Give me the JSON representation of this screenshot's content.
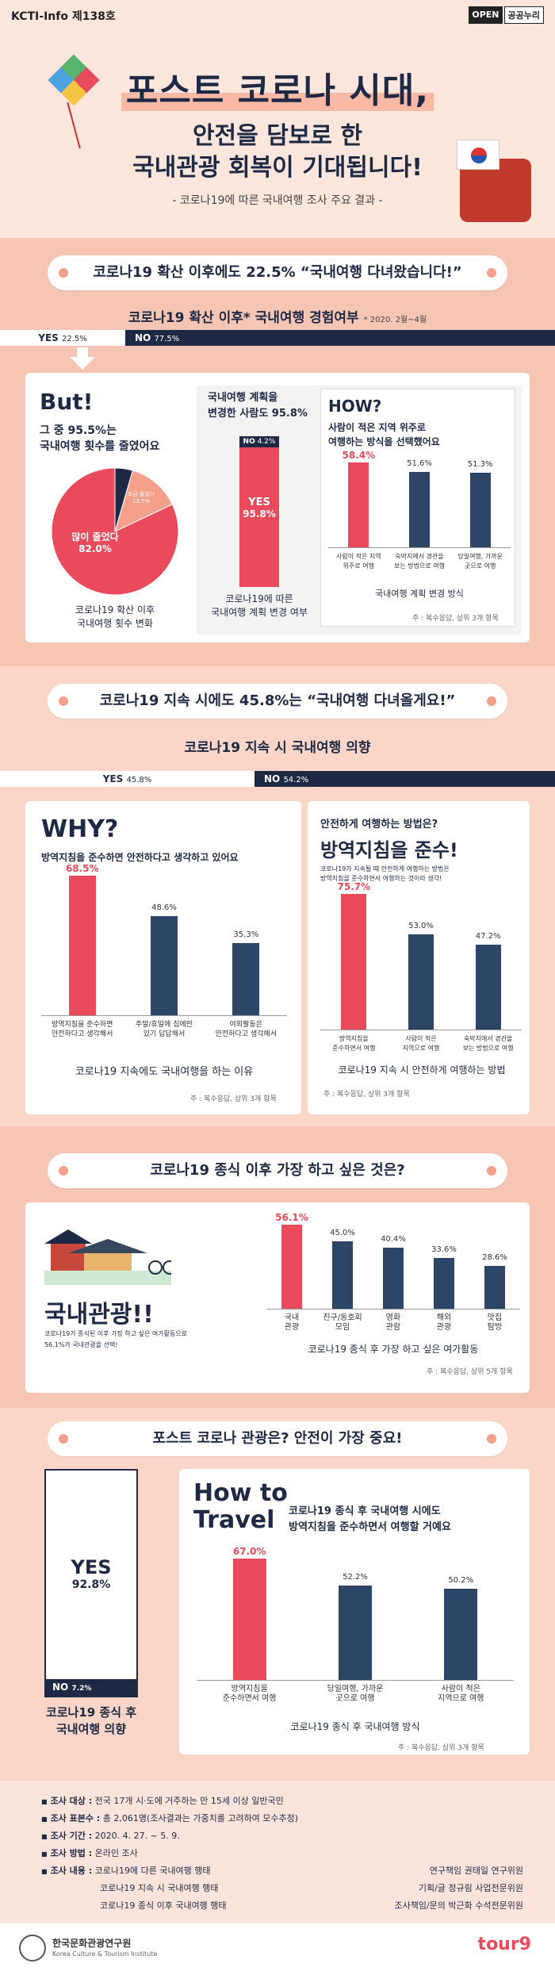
{
  "header": {
    "series": "KCTI-Info 제138호",
    "open_badge": [
      "OPEN",
      "공공누리"
    ],
    "title_line1": "포스트 코로나 시대,",
    "title_line2": "안전을 담보로 한",
    "title_line3": "국내관광 회복이 기대됩니다!",
    "subtitle": "- 코로나19에 따른 국내여행 조사 주요 결과 -"
  },
  "s1": {
    "pill": "코로나19 확산 이후에도 22.5% “국내여행 다녀왔습니다!”",
    "subtitle": "코로나19 확산 이후* 국내여행 경험여부",
    "subtitle_note": "* 2020. 2월~4월",
    "yes_label": "YES",
    "yes_value": "22.5%",
    "no_label": "NO",
    "no_value": "77.5%",
    "yes_share": 22.5,
    "but": {
      "title": "But!",
      "text1": "그 중 95.5%는",
      "text2": "국내여행 횟수를 줄였어요",
      "pie_big_label": "많이 줄었다",
      "pie_big_value": "82.0%",
      "pie_small_label": "조금 줄었다",
      "pie_small_value": "13.5%",
      "pie_values": [
        82.0,
        13.5,
        4.5
      ],
      "caption1": "코로나19 확산 이후",
      "caption2": "국내여행 횟수 변화"
    },
    "plan": {
      "title1": "국내여행 계획을",
      "title2": "변경한 사람도 95.8%",
      "no_label": "NO",
      "no_value": "4.2%",
      "yes_label": "YES",
      "yes_value": "95.8%",
      "yes_share": 95.8,
      "caption1": "코로나19에 따른",
      "caption2": "국내여행 계획 변경 여부"
    },
    "how": {
      "title": "HOW?",
      "text1": "사람이 적은 지역 위주로",
      "text2": "여행하는 방식을 선택했어요",
      "bars": [
        {
          "label1": "사람이 적은 지역",
          "label2": "위주로 여행",
          "value": 58.4,
          "text": "58.4%"
        },
        {
          "label1": "숙박지에서 경관을",
          "label2": "보는 방법으로 여행",
          "value": 51.6,
          "text": "51.6%"
        },
        {
          "label1": "당일여행, 가까운",
          "label2": "곳으로 여행",
          "value": 51.3,
          "text": "51.3%"
        }
      ],
      "caption": "국내여행 계획 변경 방식",
      "note": "주 : 복수응답, 상위 3개 항목"
    }
  },
  "s2": {
    "pill": "코로나19 지속 시에도 45.8%는 “국내여행 다녀올게요!”",
    "subtitle": "코로나19 지속 시 국내여행 의향",
    "yes_label": "YES",
    "yes_value": "45.8%",
    "no_label": "NO",
    "no_value": "54.2%",
    "yes_share": 45.8,
    "why": {
      "title": "WHY?",
      "text": "방역지침을 준수하면 안전하다고 생각하고 있어요",
      "bars": [
        {
          "label1": "방역지침을 준수하면",
          "label2": "안전하다고 생각해서",
          "value": 68.5,
          "text": "68.5%"
        },
        {
          "label1": "주말/휴일에 집에만",
          "label2": "있기 답답해서",
          "value": 48.6,
          "text": "48.6%"
        },
        {
          "label1": "야외활동은",
          "label2": "안전하다고 생각해서",
          "value": 35.3,
          "text": "35.3%"
        }
      ],
      "caption": "코로나19 지속에도 국내여행을 하는 이유",
      "note": "주 : 복수응답, 상위 3개 항목"
    },
    "safe": {
      "title1": "안전하게 여행하는 방법은?",
      "title2": "방역지침을 준수!",
      "desc1": "코로나19가 지속될 때 안전하게 여행하는 방법은",
      "desc2": "방역지침을 준수하면서 여행하는 것이라 생각!",
      "bars": [
        {
          "label1": "방역지침을",
          "label2": "준수하면서 여행",
          "value": 75.7,
          "text": "75.7%"
        },
        {
          "label1": "사람이 적은",
          "label2": "지역으로 여행",
          "value": 53.0,
          "text": "53.0%"
        },
        {
          "label1": "숙박지에서 경관을",
          "label2": "보는 방법으로 여행",
          "value": 47.2,
          "text": "47.2%"
        }
      ],
      "caption": "코로나19 지속 시 안전하게 여행하는 방법",
      "note": "주 : 복수응답, 상위 3개 항목"
    }
  },
  "s3": {
    "pill": "코로나19 종식 이후 가장 하고 싶은 것은?",
    "big": "국내관광!!",
    "desc1": "코로나19가 종식된 이후 가장 하고 싶은 여가활동으로",
    "desc2": "56.1%가 국내관광을 선택!",
    "bars": [
      {
        "label1": "국내",
        "label2": "관광",
        "value": 56.1,
        "text": "56.1%"
      },
      {
        "label1": "친구/동호회",
        "label2": "모임",
        "value": 45.0,
        "text": "45.0%"
      },
      {
        "label1": "영화",
        "label2": "관람",
        "value": 40.4,
        "text": "40.4%"
      },
      {
        "label1": "해외",
        "label2": "관광",
        "value": 33.6,
        "text": "33.6%"
      },
      {
        "label1": "맛집",
        "label2": "탐방",
        "value": 28.6,
        "text": "28.6%"
      }
    ],
    "caption": "코로나19 종식 후 가장 하고 싶은 여가활동",
    "note": "주 : 복수응답, 상위 5개 항목"
  },
  "s4": {
    "pill": "포스트 코로나 관광은? 안전이 가장 중요!",
    "yes_label": "YES",
    "yes_value": "92.8%",
    "no_label": "NO",
    "no_value": "7.2%",
    "yes_share": 92.8,
    "left_caption1": "코로나19 종식 후",
    "left_caption2": "국내여행 의향",
    "how_to1": "How to",
    "how_to2": "Travel",
    "text1": "코로나19 종식 후 국내여행 시에도",
    "text2": "방역지침을 준수하면서 여행할 거예요",
    "bars": [
      {
        "label1": "방역지침을",
        "label2": "준수하면서 여행",
        "value": 67.0,
        "text": "67.0%"
      },
      {
        "label1": "당일여행, 가까운",
        "label2": "곳으로 여행",
        "value": 52.2,
        "text": "52.2%"
      },
      {
        "label1": "사람이 적은",
        "label2": "지역으로 여행",
        "value": 50.2,
        "text": "50.2%"
      }
    ],
    "caption": "코로나19 종식 후 국내여행 방식",
    "note": "주 : 복수응답, 상위 3개 항목"
  },
  "footer": {
    "target_label": "조사 대상 :",
    "target": "전국 17개 시·도에 거주하는 만 15세 이상 일반국민",
    "sample_label": "조사 표본수 :",
    "sample": "총 2,061명(조사결과는 가중치를 고려하여 모수추정)",
    "period_label": "조사 기간 :",
    "period": "2020. 4. 27. ~ 5. 9.",
    "method_label": "조사 방법 :",
    "method": "온라인 조사",
    "content_label": "조사 내용 :",
    "content1": "코로나19에 다른 국내여행 행태",
    "content2": "코로나19 지속 시 국내여행 행태",
    "content3": "코로나19 종식 이후 국내여행 행태",
    "credit1": "연구책임 권태일 연구위원",
    "credit2": "기획/글 정규림 사업전문위원",
    "credit3": "조사책임/문의 박근화 수석전문위원",
    "org_kr": "한국문화관광연구원",
    "org_en": "Korea Culture & Tourism Institute",
    "tour_logo": "tour9"
  },
  "colors": {
    "navy": "#1e2a45",
    "red": "#e94a5c",
    "salmon": "#f6b9a6"
  }
}
